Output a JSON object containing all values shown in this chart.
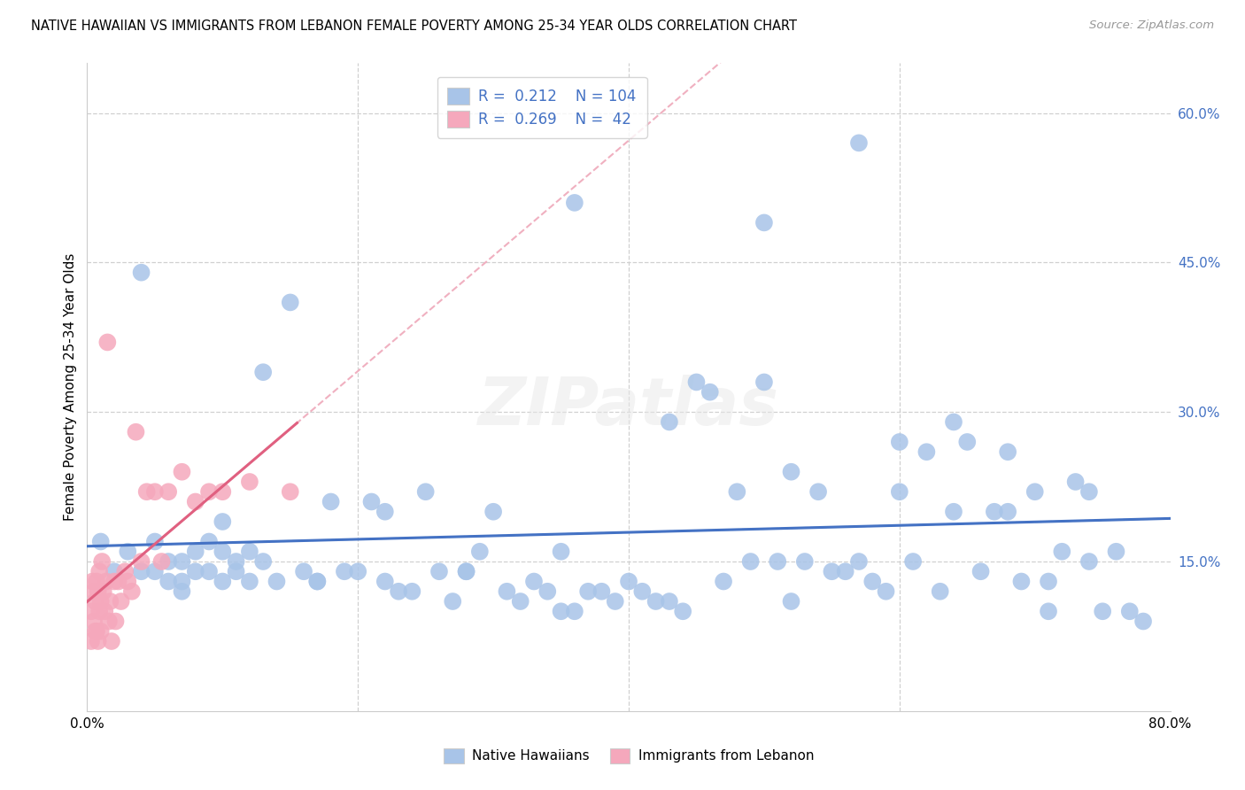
{
  "title": "NATIVE HAWAIIAN VS IMMIGRANTS FROM LEBANON FEMALE POVERTY AMONG 25-34 YEAR OLDS CORRELATION CHART",
  "source": "Source: ZipAtlas.com",
  "ylabel": "Female Poverty Among 25-34 Year Olds",
  "xlim": [
    0.0,
    0.8
  ],
  "ylim": [
    0.0,
    0.65
  ],
  "blue_color": "#a8c4e8",
  "pink_color": "#f5a8bc",
  "blue_line_color": "#4472c4",
  "pink_line_color": "#e06080",
  "pink_dash_color": "#f0b0c0",
  "blue_dash_color": "#c0d4f0",
  "r_blue": 0.212,
  "n_blue": 104,
  "r_pink": 0.269,
  "n_pink": 42,
  "legend_label_blue": "Native Hawaiians",
  "legend_label_pink": "Immigrants from Lebanon",
  "watermark": "ZIPatlas",
  "blue_x": [
    0.01,
    0.02,
    0.03,
    0.04,
    0.05,
    0.05,
    0.06,
    0.06,
    0.07,
    0.07,
    0.08,
    0.08,
    0.09,
    0.09,
    0.1,
    0.1,
    0.11,
    0.11,
    0.12,
    0.12,
    0.13,
    0.14,
    0.15,
    0.16,
    0.17,
    0.18,
    0.19,
    0.2,
    0.21,
    0.22,
    0.23,
    0.24,
    0.25,
    0.26,
    0.27,
    0.28,
    0.29,
    0.3,
    0.31,
    0.32,
    0.33,
    0.34,
    0.35,
    0.36,
    0.37,
    0.38,
    0.39,
    0.4,
    0.41,
    0.42,
    0.43,
    0.44,
    0.45,
    0.46,
    0.47,
    0.48,
    0.49,
    0.5,
    0.51,
    0.52,
    0.53,
    0.54,
    0.55,
    0.56,
    0.57,
    0.58,
    0.59,
    0.6,
    0.61,
    0.62,
    0.63,
    0.64,
    0.65,
    0.66,
    0.67,
    0.68,
    0.69,
    0.7,
    0.71,
    0.72,
    0.73,
    0.74,
    0.75,
    0.76,
    0.04,
    0.07,
    0.1,
    0.13,
    0.17,
    0.22,
    0.28,
    0.35,
    0.43,
    0.52,
    0.6,
    0.68,
    0.74,
    0.78,
    0.36,
    0.5,
    0.57,
    0.64,
    0.71,
    0.77
  ],
  "blue_y": [
    0.17,
    0.14,
    0.16,
    0.14,
    0.14,
    0.17,
    0.13,
    0.15,
    0.12,
    0.15,
    0.16,
    0.14,
    0.14,
    0.17,
    0.13,
    0.16,
    0.14,
    0.15,
    0.13,
    0.16,
    0.15,
    0.13,
    0.41,
    0.14,
    0.13,
    0.21,
    0.14,
    0.14,
    0.21,
    0.13,
    0.12,
    0.12,
    0.22,
    0.14,
    0.11,
    0.14,
    0.16,
    0.2,
    0.12,
    0.11,
    0.13,
    0.12,
    0.1,
    0.1,
    0.12,
    0.12,
    0.11,
    0.13,
    0.12,
    0.11,
    0.11,
    0.1,
    0.33,
    0.32,
    0.13,
    0.22,
    0.15,
    0.33,
    0.15,
    0.24,
    0.15,
    0.22,
    0.14,
    0.14,
    0.15,
    0.13,
    0.12,
    0.27,
    0.15,
    0.26,
    0.12,
    0.29,
    0.27,
    0.14,
    0.2,
    0.26,
    0.13,
    0.22,
    0.13,
    0.16,
    0.23,
    0.22,
    0.1,
    0.16,
    0.44,
    0.13,
    0.19,
    0.34,
    0.13,
    0.2,
    0.14,
    0.16,
    0.29,
    0.11,
    0.22,
    0.2,
    0.15,
    0.09,
    0.51,
    0.49,
    0.57,
    0.2,
    0.1,
    0.1
  ],
  "pink_x": [
    0.003,
    0.003,
    0.004,
    0.005,
    0.005,
    0.006,
    0.006,
    0.007,
    0.007,
    0.008,
    0.008,
    0.009,
    0.009,
    0.01,
    0.01,
    0.011,
    0.012,
    0.013,
    0.014,
    0.015,
    0.016,
    0.017,
    0.018,
    0.02,
    0.021,
    0.023,
    0.025,
    0.028,
    0.03,
    0.033,
    0.036,
    0.04,
    0.044,
    0.05,
    0.055,
    0.06,
    0.07,
    0.08,
    0.09,
    0.1,
    0.12,
    0.15
  ],
  "pink_y": [
    0.1,
    0.07,
    0.13,
    0.09,
    0.12,
    0.08,
    0.11,
    0.13,
    0.08,
    0.12,
    0.07,
    0.1,
    0.14,
    0.08,
    0.11,
    0.15,
    0.12,
    0.1,
    0.13,
    0.37,
    0.09,
    0.11,
    0.07,
    0.13,
    0.09,
    0.13,
    0.11,
    0.14,
    0.13,
    0.12,
    0.28,
    0.15,
    0.22,
    0.22,
    0.15,
    0.22,
    0.24,
    0.21,
    0.22,
    0.22,
    0.23,
    0.22
  ]
}
